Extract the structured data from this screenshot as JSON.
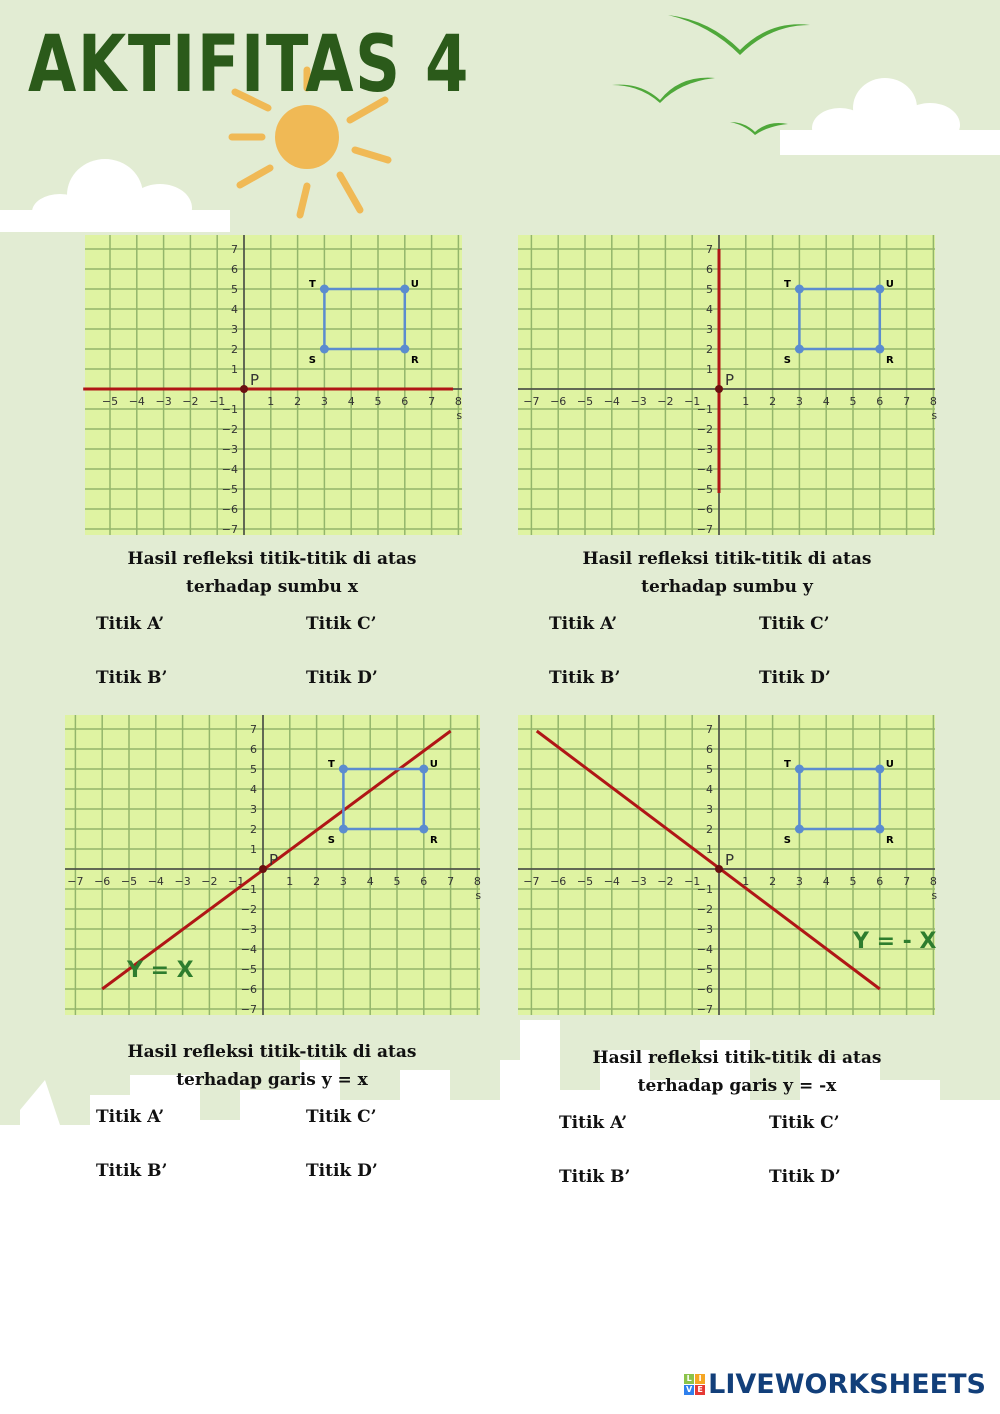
{
  "title": "AKTIFITAS 4",
  "colors": {
    "background": "#e2ecd3",
    "grid_bg": "#dff3a2",
    "grid_line": "#93b56b",
    "shape": "#5b8ccf",
    "mirror_line": "#b01616",
    "title": "#2b5a1a",
    "line_label": "#2e7d2e"
  },
  "panels": [
    {
      "points": [
        {
          "label": "T",
          "x": 3,
          "y": 5
        },
        {
          "label": "U",
          "x": 6,
          "y": 5
        },
        {
          "label": "R",
          "x": 6,
          "y": 2
        },
        {
          "label": "S",
          "x": 3,
          "y": 2
        }
      ],
      "origin_label": "P",
      "axis_label": "s",
      "mirror": "y=0",
      "line_label": "",
      "caption": [
        "Hasil refleksi titik-titik di atas",
        "terhadap sumbu x"
      ],
      "answers": [
        "Titik A’",
        "Titik C’",
        "Titik B’",
        "Titik D’"
      ]
    },
    {
      "points": [
        {
          "label": "T",
          "x": 3,
          "y": 5
        },
        {
          "label": "U",
          "x": 6,
          "y": 5
        },
        {
          "label": "R",
          "x": 6,
          "y": 2
        },
        {
          "label": "S",
          "x": 3,
          "y": 2
        }
      ],
      "origin_label": "P",
      "axis_label": "s",
      "mirror": "x=0",
      "line_label": "",
      "caption": [
        "Hasil refleksi titik-titik di atas",
        "terhadap sumbu y"
      ],
      "answers": [
        "Titik A’",
        "Titik C’",
        "Titik B’",
        "Titik D’"
      ]
    },
    {
      "points": [
        {
          "label": "T",
          "x": 3,
          "y": 5
        },
        {
          "label": "U",
          "x": 6,
          "y": 5
        },
        {
          "label": "R",
          "x": 6,
          "y": 2
        },
        {
          "label": "S",
          "x": 3,
          "y": 2
        }
      ],
      "origin_label": "P",
      "axis_label": "s",
      "mirror": "y=x",
      "line_label": "Y = X",
      "caption": [
        "Hasil refleksi titik-titik di atas",
        "terhadap garis y = x"
      ],
      "answers": [
        "Titik A’",
        "Titik C’",
        "Titik B’",
        "Titik D’"
      ]
    },
    {
      "points": [
        {
          "label": "T",
          "x": 3,
          "y": 5
        },
        {
          "label": "U",
          "x": 6,
          "y": 5
        },
        {
          "label": "R",
          "x": 6,
          "y": 2
        },
        {
          "label": "S",
          "x": 3,
          "y": 2
        }
      ],
      "origin_label": "P",
      "axis_label": "s",
      "mirror": "y=-x",
      "line_label": "Y = - X",
      "caption": [
        "Hasil refleksi titik-titik di atas",
        "terhadap garis y = -x"
      ],
      "answers": [
        "Titik A’",
        "Titik C’",
        "Titik B’",
        "Titik D’"
      ]
    }
  ],
  "logo": {
    "text": "LIVEWORKSHEETS",
    "badge": [
      "L",
      "I",
      "V",
      "E"
    ]
  }
}
